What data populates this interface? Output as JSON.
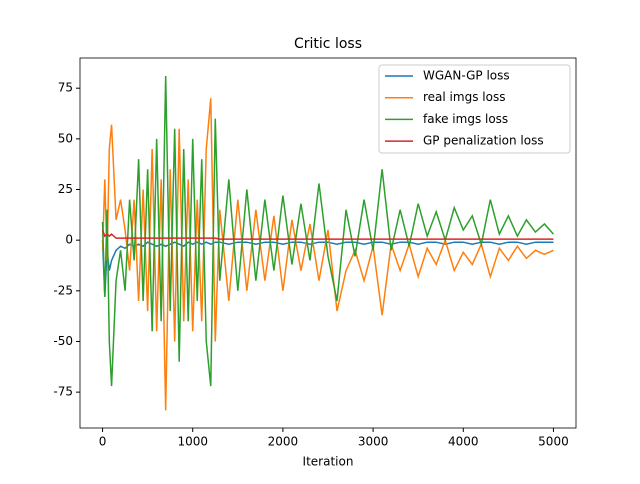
{
  "chart_data": {
    "type": "line",
    "title": "Critic loss",
    "x_label": "Iteration",
    "x": [
      0,
      25,
      50,
      75,
      100,
      150,
      200,
      250,
      300,
      350,
      400,
      450,
      500,
      550,
      600,
      650,
      700,
      750,
      800,
      850,
      900,
      950,
      1000,
      1050,
      1100,
      1150,
      1200,
      1250,
      1300,
      1400,
      1500,
      1600,
      1700,
      1800,
      1900,
      2000,
      2100,
      2200,
      2300,
      2400,
      2500,
      2600,
      2700,
      2800,
      2900,
      3000,
      3100,
      3200,
      3300,
      3400,
      3500,
      3600,
      3700,
      3800,
      3900,
      4000,
      4100,
      4200,
      4300,
      4400,
      4500,
      4600,
      4700,
      4800,
      4900,
      5000
    ],
    "series": [
      {
        "name": "WGAN-GP loss",
        "color": "#1f77b4",
        "values": [
          0,
          -28,
          -5,
          -15,
          -10,
          -5,
          -3,
          -4,
          -2,
          -3,
          -2,
          -3,
          -1,
          -2,
          -3,
          -2,
          -3,
          -2,
          -1,
          -2,
          -3,
          -1,
          -2,
          -1,
          -2,
          -1,
          -2,
          -1,
          -1,
          -2,
          -1,
          -1,
          -2,
          -1,
          -1,
          -2,
          -1,
          -1,
          -2,
          -1,
          -1,
          -2,
          -1,
          -1,
          -2,
          -1,
          -1,
          -2,
          -1,
          -1,
          -2,
          -1,
          -1,
          -2,
          -1,
          -1,
          -2,
          -1,
          -1,
          -2,
          -1,
          -1,
          -2,
          -1,
          -1,
          -1
        ]
      },
      {
        "name": "real imgs loss",
        "color": "#ff7f0e",
        "values": [
          -5,
          30,
          -10,
          45,
          57,
          10,
          20,
          5,
          -15,
          20,
          -30,
          25,
          -35,
          45,
          -45,
          30,
          -84,
          35,
          -50,
          55,
          -40,
          30,
          -45,
          20,
          -40,
          45,
          70,
          -50,
          15,
          -30,
          20,
          -25,
          15,
          -20,
          12,
          -25,
          10,
          -15,
          8,
          -20,
          5,
          -35,
          -15,
          -5,
          -20,
          -3,
          -37,
          -2,
          -15,
          -2,
          -18,
          -4,
          -12,
          0,
          -15,
          -6,
          -12,
          -2,
          -18,
          -4,
          -10,
          -3,
          -9,
          -5,
          -7,
          -5
        ]
      },
      {
        "name": "fake imgs loss",
        "color": "#2ca02c",
        "values": [
          9,
          -28,
          15,
          -50,
          -72,
          -20,
          -5,
          -25,
          20,
          -10,
          40,
          -30,
          35,
          -45,
          50,
          -40,
          81,
          -35,
          55,
          -60,
          45,
          -40,
          50,
          -30,
          40,
          -50,
          -72,
          60,
          -20,
          30,
          -25,
          25,
          -20,
          20,
          -15,
          22,
          -12,
          18,
          -10,
          28,
          -8,
          -30,
          15,
          -8,
          20,
          -5,
          35,
          -5,
          15,
          -3,
          18,
          2,
          14,
          0,
          16,
          5,
          12,
          -2,
          20,
          3,
          12,
          2,
          10,
          4,
          8,
          3
        ]
      },
      {
        "name": "GP penalization loss",
        "color": "#d62728",
        "values": [
          5,
          2,
          3,
          2,
          3,
          1,
          1,
          1,
          1,
          1,
          1,
          1,
          1,
          1,
          1,
          1,
          1,
          1,
          1,
          1,
          1,
          1,
          1,
          1,
          1,
          1,
          1,
          1,
          0.5,
          0.5,
          0.5,
          0.5,
          0.5,
          0.5,
          0.5,
          0.5,
          0.5,
          0.5,
          0.5,
          0.5,
          0.5,
          0.5,
          0.5,
          0.5,
          0.5,
          0.5,
          0.5,
          0.5,
          0.5,
          0.5,
          0.5,
          0.5,
          0.5,
          0.5,
          0.5,
          0.5,
          0.5,
          0.5,
          0.5,
          0.5,
          0.5,
          0.5,
          0.5,
          0.5,
          0.5,
          0.5
        ]
      }
    ],
    "xlim": [
      -250,
      5250
    ],
    "ylim": [
      -92.7,
      89.9
    ],
    "xticks": [
      0,
      1000,
      2000,
      3000,
      4000,
      5000
    ],
    "yticks": [
      -75,
      -50,
      -25,
      0,
      25,
      50,
      75
    ],
    "legend": "upper right"
  }
}
